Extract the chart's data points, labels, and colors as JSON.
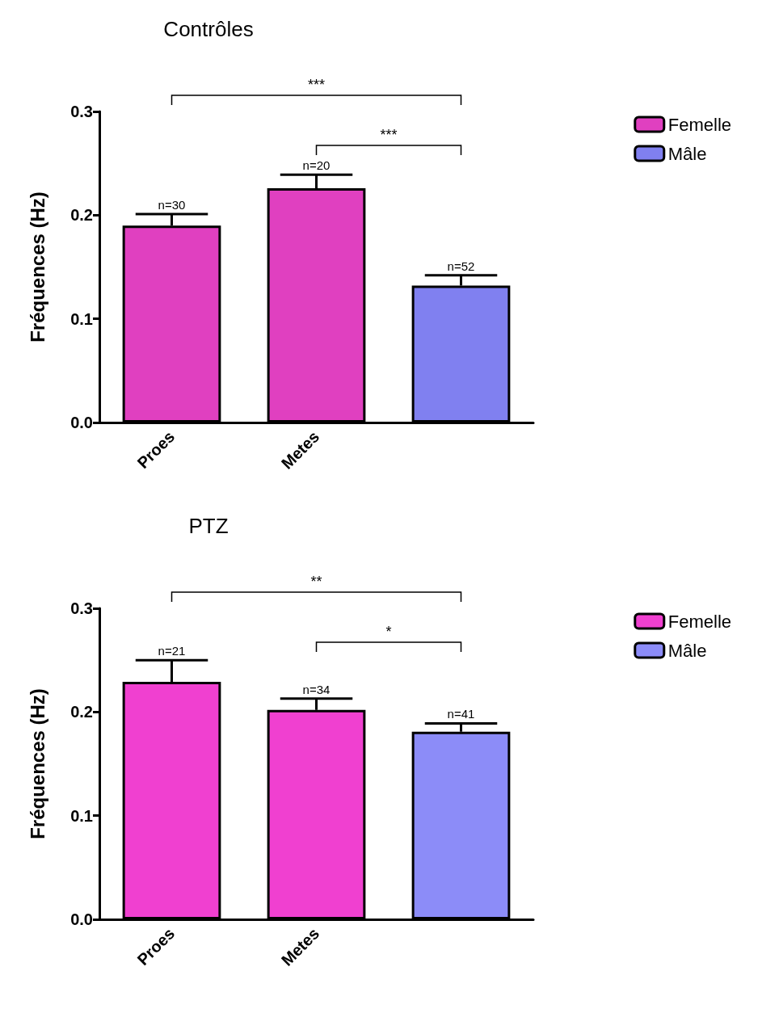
{
  "chart_data": [
    {
      "type": "bar",
      "title": "Contrôles",
      "ylabel": "Fréquences (Hz)",
      "categories": [
        "Proes",
        "Metes",
        null
      ],
      "series": [
        {
          "name": "Femelle",
          "color": "#e040c0",
          "values": [
            0.19,
            0.226,
            null
          ],
          "errors": [
            [
              0.19,
              0.201
            ],
            [
              0.226,
              0.239
            ],
            null
          ]
        },
        {
          "name": "Mâle",
          "color": "#8080f0",
          "values": [
            null,
            null,
            0.132
          ],
          "errors": [
            null,
            null,
            [
              0.132,
              0.142
            ]
          ]
        }
      ],
      "ylim": [
        0,
        0.3
      ],
      "yticks": [
        {
          "value": 0,
          "label": "0.0"
        },
        {
          "value": 0.1,
          "label": "0.1"
        },
        {
          "value": 0.2,
          "label": "0.2"
        },
        {
          "value": 0.3,
          "label": "0.3"
        }
      ],
      "grid": false,
      "legend": "top right",
      "annotations": [
        {
          "text": "n=30",
          "x": "Proes",
          "y": 0.201
        },
        {
          "text": "n=20",
          "x": "Metes",
          "y": 0.239
        },
        {
          "text": "n=52",
          "y": 0.142
        },
        "***",
        "***"
      ]
    },
    {
      "type": "bar",
      "title": "PTZ",
      "ylabel": "Fréquences (Hz)",
      "categories": [
        "Proes",
        "Metes",
        null
      ],
      "series": [
        {
          "name": "Femelle",
          "color": "#f040d0",
          "values": [
            0.229,
            0.202,
            null
          ],
          "errors": [
            [
              0.229,
              0.25
            ],
            [
              0.202,
              0.213
            ],
            null
          ]
        },
        {
          "name": "Mâle",
          "color": "#8c8cf8",
          "values": [
            null,
            null,
            0.181
          ],
          "errors": [
            null,
            null,
            [
              0.181,
              0.189
            ]
          ]
        }
      ],
      "ylim": [
        0,
        0.3
      ],
      "yticks": [
        {
          "value": 0,
          "label": "0.0"
        },
        {
          "value": 0.1,
          "label": "0.1"
        },
        {
          "value": 0.2,
          "label": "0.2"
        },
        {
          "value": 0.3,
          "label": "0.3"
        }
      ],
      "grid": false,
      "legend": "top right",
      "annotations": [
        {
          "text": "n=21",
          "x": "Proes",
          "y": 0.25
        },
        {
          "text": "n=34",
          "x": "Metes",
          "y": 0.213
        },
        {
          "text": "n=41",
          "y": 0.189
        },
        "**",
        "*"
      ]
    }
  ]
}
